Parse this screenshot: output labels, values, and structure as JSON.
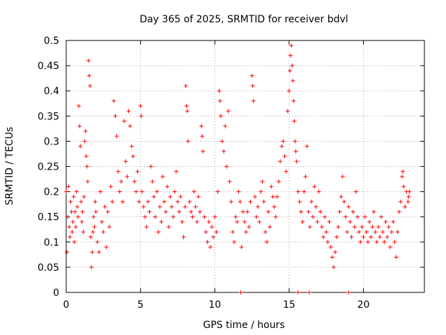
{
  "chart_data": {
    "type": "scatter",
    "title": "Day 365 of 2025, SRMTID for receiver bdvl",
    "xlabel": "GPS time / hours",
    "ylabel": "SRMTID / TECUs",
    "xlim": [
      0,
      24.1
    ],
    "ylim": [
      0,
      0.5
    ],
    "x_ticks": [
      0,
      5,
      10,
      15,
      20
    ],
    "x_tick_labels": [
      "0",
      "5",
      "10",
      "15",
      "20"
    ],
    "y_ticks": [
      0,
      0.05,
      0.1,
      0.15,
      0.2,
      0.25,
      0.3,
      0.35,
      0.4,
      0.45,
      0.5
    ],
    "y_tick_labels": [
      "0",
      "0.05",
      "0.1",
      "0.15",
      "0.2",
      "0.25",
      "0.3",
      "0.35",
      "0.4",
      "0.45",
      "0.5"
    ],
    "grid": true,
    "marker": "+",
    "series": [
      {
        "name": "SRMTID",
        "color": "#ff0000",
        "points": [
          [
            0.0,
            0.2
          ],
          [
            0.05,
            0.08
          ],
          [
            0.1,
            0.15
          ],
          [
            0.15,
            0.21
          ],
          [
            0.2,
            0.13
          ],
          [
            0.25,
            0.11
          ],
          [
            0.3,
            0.18
          ],
          [
            0.35,
            0.16
          ],
          [
            0.4,
            0.12
          ],
          [
            0.45,
            0.14
          ],
          [
            0.5,
            0.19
          ],
          [
            0.55,
            0.1
          ],
          [
            0.6,
            0.16
          ],
          [
            0.65,
            0.13
          ],
          [
            0.7,
            0.2
          ],
          [
            0.75,
            0.17
          ],
          [
            0.8,
            0.15
          ],
          [
            0.85,
            0.37
          ],
          [
            0.9,
            0.33
          ],
          [
            0.95,
            0.29
          ],
          [
            1.0,
            0.18
          ],
          [
            1.05,
            0.14
          ],
          [
            1.1,
            0.16
          ],
          [
            1.15,
            0.12
          ],
          [
            1.2,
            0.19
          ],
          [
            1.25,
            0.3
          ],
          [
            1.3,
            0.32
          ],
          [
            1.35,
            0.27
          ],
          [
            1.4,
            0.25
          ],
          [
            1.45,
            0.22
          ],
          [
            1.5,
            0.46
          ],
          [
            1.55,
            0.43
          ],
          [
            1.6,
            0.41
          ],
          [
            1.65,
            0.11
          ],
          [
            1.7,
            0.05
          ],
          [
            1.75,
            0.08
          ],
          [
            1.8,
            0.12
          ],
          [
            1.85,
            0.15
          ],
          [
            1.9,
            0.13
          ],
          [
            1.95,
            0.18
          ],
          [
            2.0,
            0.16
          ],
          [
            2.1,
            0.1
          ],
          [
            2.2,
            0.08
          ],
          [
            2.3,
            0.2
          ],
          [
            2.4,
            0.14
          ],
          [
            2.5,
            0.12
          ],
          [
            2.6,
            0.17
          ],
          [
            2.7,
            0.09
          ],
          [
            2.8,
            0.16
          ],
          [
            2.9,
            0.13
          ],
          [
            3.0,
            0.21
          ],
          [
            3.1,
            0.18
          ],
          [
            3.2,
            0.38
          ],
          [
            3.3,
            0.35
          ],
          [
            3.4,
            0.31
          ],
          [
            3.5,
            0.24
          ],
          [
            3.6,
            0.2
          ],
          [
            3.7,
            0.22
          ],
          [
            3.8,
            0.18
          ],
          [
            3.9,
            0.34
          ],
          [
            4.0,
            0.26
          ],
          [
            4.1,
            0.23
          ],
          [
            4.2,
            0.36
          ],
          [
            4.3,
            0.33
          ],
          [
            4.4,
            0.29
          ],
          [
            4.5,
            0.27
          ],
          [
            4.6,
            0.22
          ],
          [
            4.7,
            0.2
          ],
          [
            4.8,
            0.24
          ],
          [
            4.9,
            0.18
          ],
          [
            5.0,
            0.37
          ],
          [
            5.05,
            0.35
          ],
          [
            5.1,
            0.2
          ],
          [
            5.2,
            0.17
          ],
          [
            5.3,
            0.15
          ],
          [
            5.4,
            0.13
          ],
          [
            5.5,
            0.18
          ],
          [
            5.6,
            0.16
          ],
          [
            5.7,
            0.25
          ],
          [
            5.8,
            0.22
          ],
          [
            5.9,
            0.19
          ],
          [
            6.0,
            0.15
          ],
          [
            6.1,
            0.2
          ],
          [
            6.2,
            0.12
          ],
          [
            6.3,
            0.17
          ],
          [
            6.4,
            0.14
          ],
          [
            6.5,
            0.23
          ],
          [
            6.6,
            0.18
          ],
          [
            6.7,
            0.16
          ],
          [
            6.8,
            0.21
          ],
          [
            6.9,
            0.13
          ],
          [
            7.0,
            0.19
          ],
          [
            7.1,
            0.17
          ],
          [
            7.2,
            0.15
          ],
          [
            7.3,
            0.2
          ],
          [
            7.4,
            0.24
          ],
          [
            7.5,
            0.18
          ],
          [
            7.6,
            0.16
          ],
          [
            7.7,
            0.19
          ],
          [
            7.8,
            0.14
          ],
          [
            7.9,
            0.11
          ],
          [
            8.0,
            0.17
          ],
          [
            8.05,
            0.41
          ],
          [
            8.1,
            0.37
          ],
          [
            8.15,
            0.36
          ],
          [
            8.2,
            0.3
          ],
          [
            8.3,
            0.18
          ],
          [
            8.4,
            0.16
          ],
          [
            8.5,
            0.15
          ],
          [
            8.6,
            0.2
          ],
          [
            8.7,
            0.17
          ],
          [
            8.8,
            0.14
          ],
          [
            8.9,
            0.19
          ],
          [
            9.0,
            0.16
          ],
          [
            9.1,
            0.33
          ],
          [
            9.15,
            0.31
          ],
          [
            9.2,
            0.28
          ],
          [
            9.3,
            0.15
          ],
          [
            9.4,
            0.12
          ],
          [
            9.5,
            0.1
          ],
          [
            9.6,
            0.14
          ],
          [
            9.7,
            0.09
          ],
          [
            9.8,
            0.13
          ],
          [
            9.9,
            0.11
          ],
          [
            10.0,
            0.15
          ],
          [
            10.1,
            0.12
          ],
          [
            10.2,
            0.2
          ],
          [
            10.3,
            0.4
          ],
          [
            10.35,
            0.38
          ],
          [
            10.4,
            0.35
          ],
          [
            10.5,
            0.3
          ],
          [
            10.6,
            0.28
          ],
          [
            10.7,
            0.33
          ],
          [
            10.8,
            0.25
          ],
          [
            10.9,
            0.36
          ],
          [
            11.0,
            0.22
          ],
          [
            11.1,
            0.18
          ],
          [
            11.2,
            0.12
          ],
          [
            11.3,
            0.1
          ],
          [
            11.4,
            0.15
          ],
          [
            11.5,
            0.14
          ],
          [
            11.6,
            0.2
          ],
          [
            11.7,
            0.18
          ],
          [
            11.8,
            0.09
          ],
          [
            11.9,
            0.16
          ],
          [
            12.0,
            0.14
          ],
          [
            12.1,
            0.12
          ],
          [
            12.2,
            0.16
          ],
          [
            12.3,
            0.13
          ],
          [
            12.4,
            0.18
          ],
          [
            12.5,
            0.43
          ],
          [
            12.55,
            0.41
          ],
          [
            12.6,
            0.38
          ],
          [
            12.7,
            0.19
          ],
          [
            12.8,
            0.15
          ],
          [
            12.9,
            0.17
          ],
          [
            13.0,
            0.14
          ],
          [
            13.1,
            0.2
          ],
          [
            13.2,
            0.22
          ],
          [
            13.3,
            0.18
          ],
          [
            13.4,
            0.12
          ],
          [
            13.5,
            0.1
          ],
          [
            13.6,
            0.16
          ],
          [
            13.7,
            0.13
          ],
          [
            13.8,
            0.21
          ],
          [
            13.9,
            0.19
          ],
          [
            14.0,
            0.17
          ],
          [
            14.1,
            0.15
          ],
          [
            14.2,
            0.19
          ],
          [
            14.3,
            0.22
          ],
          [
            14.4,
            0.26
          ],
          [
            14.5,
            0.29
          ],
          [
            14.6,
            0.3
          ],
          [
            14.7,
            0.27
          ],
          [
            14.8,
            0.24
          ],
          [
            14.9,
            0.36
          ],
          [
            15.0,
            0.4
          ],
          [
            15.05,
            0.44
          ],
          [
            15.1,
            0.47
          ],
          [
            15.15,
            0.49
          ],
          [
            15.2,
            0.45
          ],
          [
            15.25,
            0.42
          ],
          [
            15.3,
            0.38
          ],
          [
            15.35,
            0.34
          ],
          [
            15.4,
            0.3
          ],
          [
            15.45,
            0.28
          ],
          [
            15.5,
            0.26
          ],
          [
            15.6,
            0.2
          ],
          [
            15.7,
            0.18
          ],
          [
            15.8,
            0.16
          ],
          [
            15.9,
            0.14
          ],
          [
            16.0,
            0.2
          ],
          [
            16.1,
            0.23
          ],
          [
            16.2,
            0.29
          ],
          [
            16.3,
            0.16
          ],
          [
            16.4,
            0.13
          ],
          [
            16.5,
            0.18
          ],
          [
            16.6,
            0.15
          ],
          [
            16.7,
            0.21
          ],
          [
            16.8,
            0.17
          ],
          [
            16.9,
            0.14
          ],
          [
            17.0,
            0.2
          ],
          [
            17.1,
            0.16
          ],
          [
            17.2,
            0.13
          ],
          [
            17.3,
            0.11
          ],
          [
            17.4,
            0.15
          ],
          [
            17.5,
            0.12
          ],
          [
            17.6,
            0.1
          ],
          [
            17.7,
            0.14
          ],
          [
            17.8,
            0.09
          ],
          [
            17.9,
            0.07
          ],
          [
            18.0,
            0.05
          ],
          [
            18.1,
            0.08
          ],
          [
            18.2,
            0.11
          ],
          [
            18.3,
            0.13
          ],
          [
            18.4,
            0.16
          ],
          [
            18.5,
            0.19
          ],
          [
            18.6,
            0.23
          ],
          [
            18.7,
            0.18
          ],
          [
            18.8,
            0.15
          ],
          [
            18.9,
            0.12
          ],
          [
            19.0,
            0.17
          ],
          [
            19.1,
            0.14
          ],
          [
            19.2,
            0.11
          ],
          [
            19.3,
            0.16
          ],
          [
            19.4,
            0.13
          ],
          [
            19.5,
            0.2
          ],
          [
            19.6,
            0.15
          ],
          [
            19.7,
            0.12
          ],
          [
            19.8,
            0.1
          ],
          [
            19.9,
            0.13
          ],
          [
            20.0,
            0.11
          ],
          [
            20.1,
            0.15
          ],
          [
            20.2,
            0.12
          ],
          [
            20.3,
            0.1
          ],
          [
            20.4,
            0.14
          ],
          [
            20.5,
            0.11
          ],
          [
            20.6,
            0.13
          ],
          [
            20.7,
            0.16
          ],
          [
            20.8,
            0.12
          ],
          [
            20.9,
            0.1
          ],
          [
            21.0,
            0.13
          ],
          [
            21.1,
            0.11
          ],
          [
            21.2,
            0.15
          ],
          [
            21.3,
            0.12
          ],
          [
            21.4,
            0.1
          ],
          [
            21.5,
            0.14
          ],
          [
            21.6,
            0.11
          ],
          [
            21.7,
            0.13
          ],
          [
            21.8,
            0.09
          ],
          [
            21.9,
            0.12
          ],
          [
            22.0,
            0.14
          ],
          [
            22.1,
            0.1
          ],
          [
            22.2,
            0.07
          ],
          [
            22.3,
            0.12
          ],
          [
            22.4,
            0.16
          ],
          [
            22.5,
            0.18
          ],
          [
            22.6,
            0.23
          ],
          [
            22.65,
            0.24
          ],
          [
            22.7,
            0.21
          ],
          [
            22.8,
            0.17
          ],
          [
            22.9,
            0.2
          ],
          [
            23.0,
            0.18
          ],
          [
            23.05,
            0.19
          ],
          [
            23.1,
            0.2
          ],
          [
            11.75,
            0.0
          ],
          [
            15.6,
            0.0
          ],
          [
            16.35,
            0.0
          ],
          [
            19.0,
            0.0
          ]
        ]
      }
    ]
  }
}
